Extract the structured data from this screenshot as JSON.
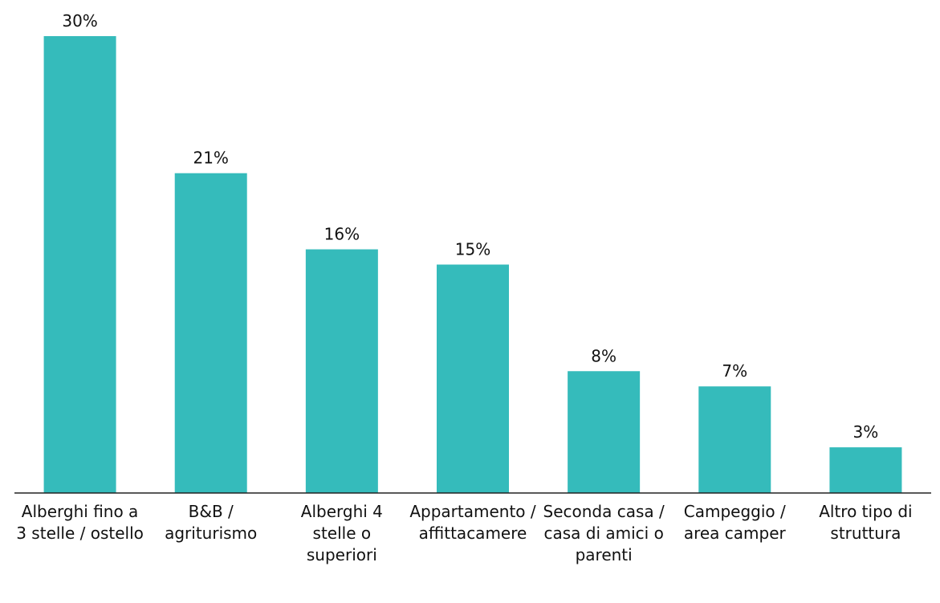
{
  "chart_data": {
    "type": "bar",
    "categories": [
      "Alberghi fino a 3 stelle / ostello",
      "B&B / agriturismo",
      "Alberghi 4 stelle o superiori",
      "Appartamento / affittacamere",
      "Seconda casa / casa di amici o parenti",
      "Campeggio / area camper",
      "Altro tipo di struttura"
    ],
    "values": [
      30,
      21,
      16,
      15,
      8,
      7,
      3
    ],
    "value_labels": [
      "30%",
      "21%",
      "16%",
      "15%",
      "8%",
      "7%",
      "3%"
    ],
    "color": "#35bbbb"
  }
}
